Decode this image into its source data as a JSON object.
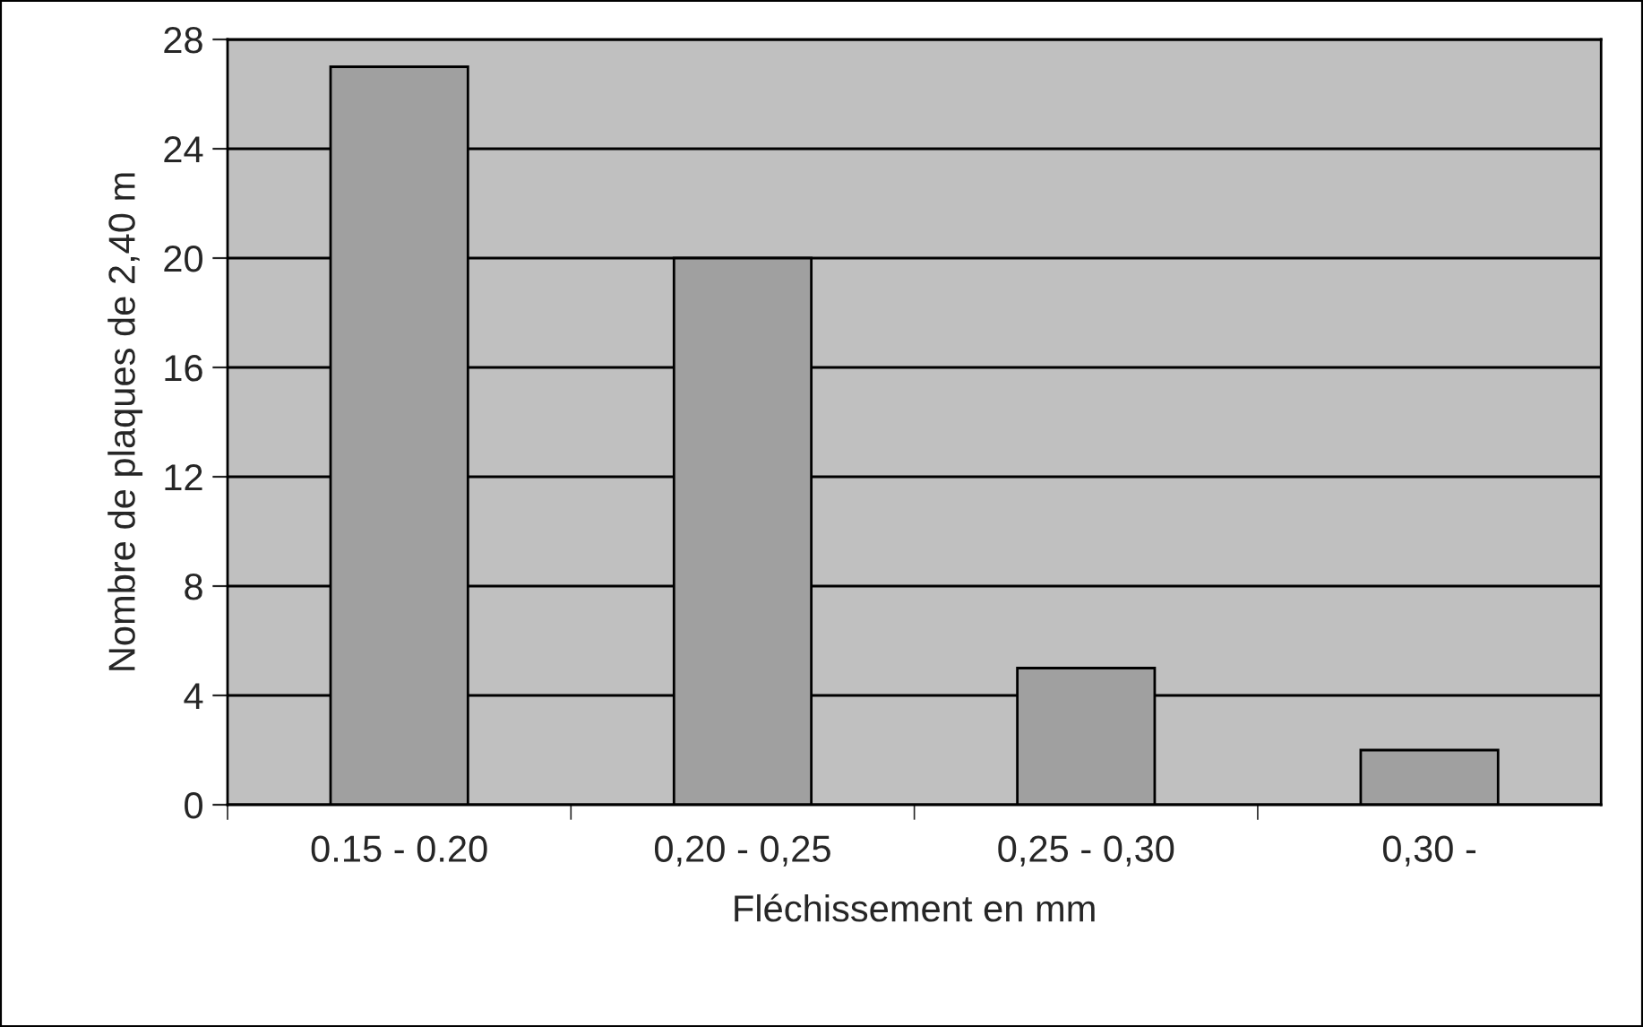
{
  "chart_data": {
    "type": "bar",
    "xlabel": "Fléchissement en mm",
    "ylabel": "Nombre de plaques de 2,40 m",
    "categories": [
      "0.15 - 0.20",
      "0,20 - 0,25",
      "0,25 - 0,30",
      "0,30 -"
    ],
    "values": [
      27,
      20,
      5,
      2
    ],
    "color": "#a0a0a0",
    "ylim": [
      0,
      28
    ],
    "yticks": [
      0,
      4,
      8,
      12,
      16,
      20,
      24,
      28
    ],
    "grid": "y"
  }
}
